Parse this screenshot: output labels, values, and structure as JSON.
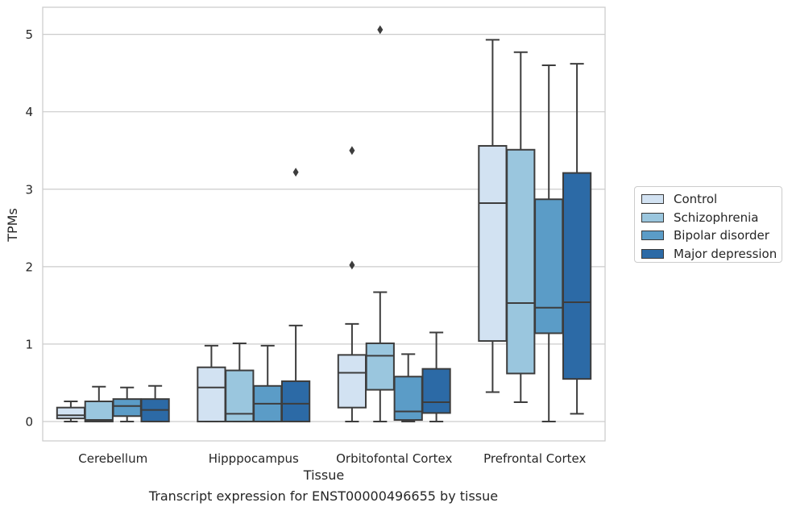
{
  "chart_data": {
    "type": "box",
    "caption": "Transcript expression for ENST00000496655 by tissue",
    "xlabel": "Tissue",
    "ylabel": "TPMs",
    "ylim": [
      -0.25,
      5.35
    ],
    "yticks": [
      0,
      1,
      2,
      3,
      4,
      5
    ],
    "grid": "horizontal",
    "legend_position": "right",
    "categories": [
      "Cerebellum",
      "Hipppocampus",
      "Orbitofontal Cortex",
      "Prefrontal Cortex"
    ],
    "series": [
      {
        "name": "Control",
        "color": "#d2e2f2",
        "boxes": [
          {
            "whislo": 0.0,
            "q1": 0.04,
            "med": 0.08,
            "q3": 0.18,
            "whishi": 0.26,
            "fliers": []
          },
          {
            "whislo": 0.0,
            "q1": 0.0,
            "med": 0.44,
            "q3": 0.7,
            "whishi": 0.98,
            "fliers": []
          },
          {
            "whislo": 0.0,
            "q1": 0.18,
            "med": 0.63,
            "q3": 0.86,
            "whishi": 1.26,
            "fliers": [
              2.02,
              3.5
            ]
          },
          {
            "whislo": 0.38,
            "q1": 1.04,
            "med": 2.82,
            "q3": 3.56,
            "whishi": 4.93,
            "fliers": []
          }
        ]
      },
      {
        "name": "Schizophrenia",
        "color": "#9ac6de",
        "boxes": [
          {
            "whislo": 0.0,
            "q1": 0.0,
            "med": 0.02,
            "q3": 0.26,
            "whishi": 0.45,
            "fliers": []
          },
          {
            "whislo": 0.0,
            "q1": 0.0,
            "med": 0.1,
            "q3": 0.66,
            "whishi": 1.01,
            "fliers": []
          },
          {
            "whislo": 0.0,
            "q1": 0.41,
            "med": 0.85,
            "q3": 1.01,
            "whishi": 1.67,
            "fliers": [
              5.06
            ]
          },
          {
            "whislo": 0.25,
            "q1": 0.62,
            "med": 1.53,
            "q3": 3.51,
            "whishi": 4.77,
            "fliers": []
          }
        ]
      },
      {
        "name": "Bipolar disorder",
        "color": "#5b9cc7",
        "boxes": [
          {
            "whislo": 0.0,
            "q1": 0.07,
            "med": 0.2,
            "q3": 0.29,
            "whishi": 0.44,
            "fliers": []
          },
          {
            "whislo": 0.0,
            "q1": 0.0,
            "med": 0.23,
            "q3": 0.46,
            "whishi": 0.98,
            "fliers": []
          },
          {
            "whislo": 0.0,
            "q1": 0.02,
            "med": 0.13,
            "q3": 0.58,
            "whishi": 0.87,
            "fliers": []
          },
          {
            "whislo": 0.0,
            "q1": 1.14,
            "med": 1.47,
            "q3": 2.87,
            "whishi": 4.6,
            "fliers": []
          }
        ]
      },
      {
        "name": "Major depression",
        "color": "#2c6aa6",
        "boxes": [
          {
            "whislo": 0.0,
            "q1": 0.0,
            "med": 0.15,
            "q3": 0.29,
            "whishi": 0.46,
            "fliers": []
          },
          {
            "whislo": 0.0,
            "q1": 0.0,
            "med": 0.23,
            "q3": 0.52,
            "whishi": 1.24,
            "fliers": [
              3.22
            ]
          },
          {
            "whislo": 0.0,
            "q1": 0.11,
            "med": 0.25,
            "q3": 0.68,
            "whishi": 1.15,
            "fliers": []
          },
          {
            "whislo": 0.1,
            "q1": 0.55,
            "med": 1.54,
            "q3": 3.21,
            "whishi": 4.62,
            "fliers": []
          }
        ]
      }
    ]
  }
}
